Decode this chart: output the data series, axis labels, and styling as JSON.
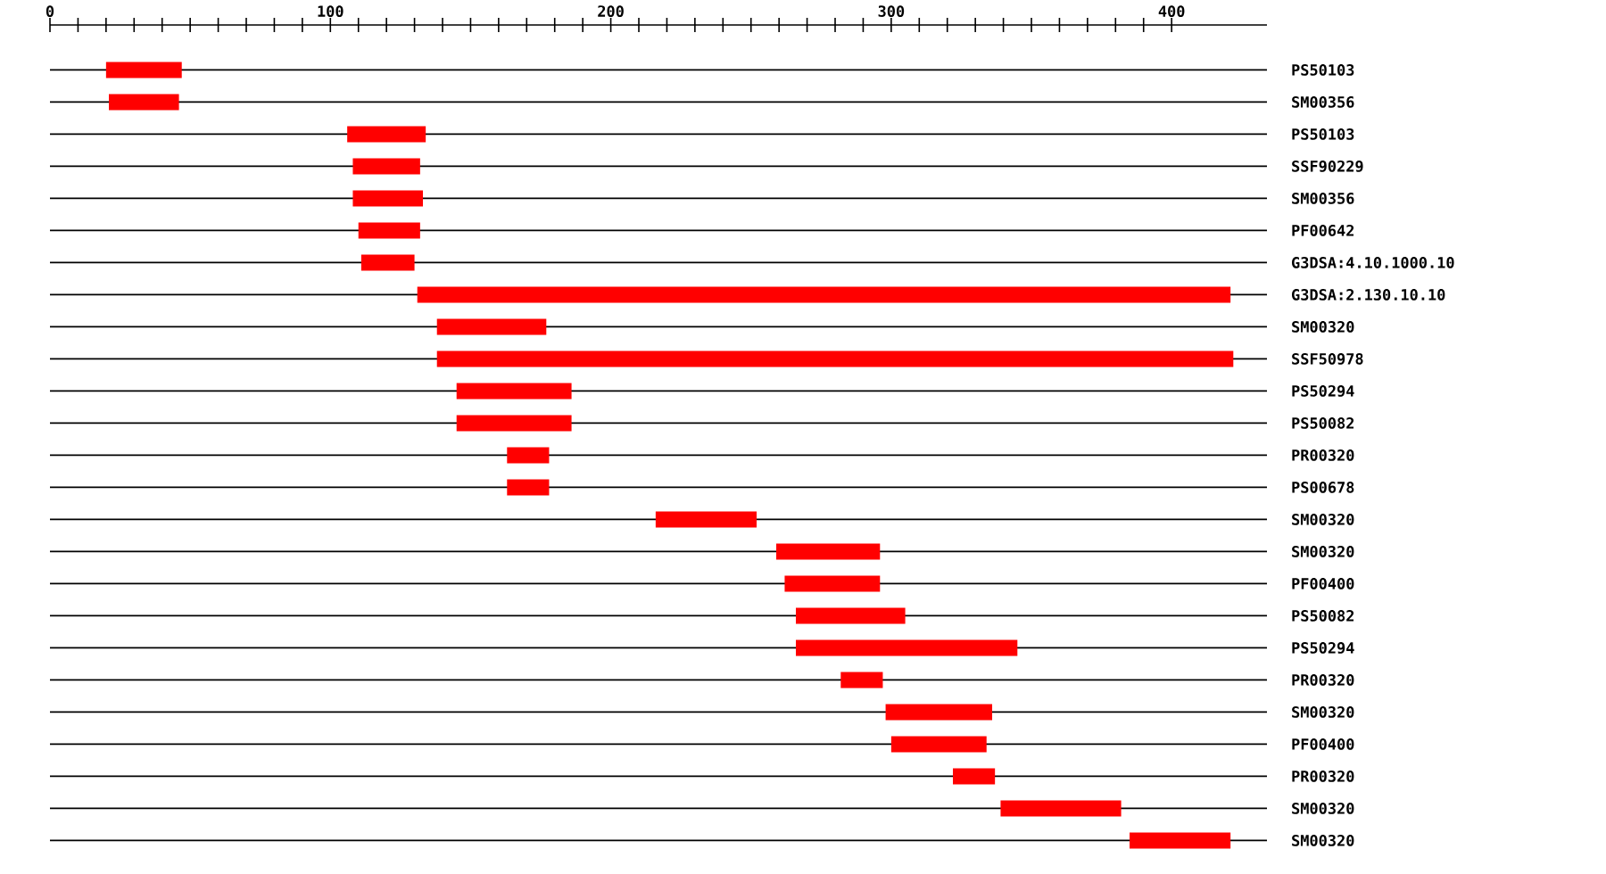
{
  "chart_data": {
    "type": "bar",
    "orientation": "horizontal",
    "color": "#ff0000",
    "grid": "y",
    "categories": [
      "PS50103",
      "SM00356",
      "PS50103",
      "SSF90229",
      "SM00356",
      "PF00642",
      "G3DSA:4.10.1000.10",
      "G3DSA:2.130.10.10",
      "SM00320",
      "SSF50978",
      "PS50294",
      "PS50082",
      "PR00320",
      "PS00678",
      "SM00320",
      "SM00320",
      "PF00400",
      "PS50082",
      "PS50294",
      "PR00320",
      "SM00320",
      "PF00400",
      "PR00320",
      "SM00320",
      "SM00320"
    ],
    "base": [
      20,
      21,
      106,
      108,
      108,
      110,
      111,
      131,
      138,
      138,
      145,
      145,
      163,
      163,
      216,
      259,
      262,
      266,
      266,
      282,
      298,
      300,
      322,
      339,
      385
    ],
    "values": [
      27,
      25,
      28,
      24,
      25,
      22,
      19,
      290,
      39,
      284,
      41,
      41,
      15,
      15,
      36,
      37,
      34,
      39,
      79,
      15,
      38,
      34,
      15,
      43,
      36
    ],
    "xlim": [
      0,
      434
    ],
    "xticks": [
      0,
      100,
      200,
      300,
      400
    ]
  }
}
